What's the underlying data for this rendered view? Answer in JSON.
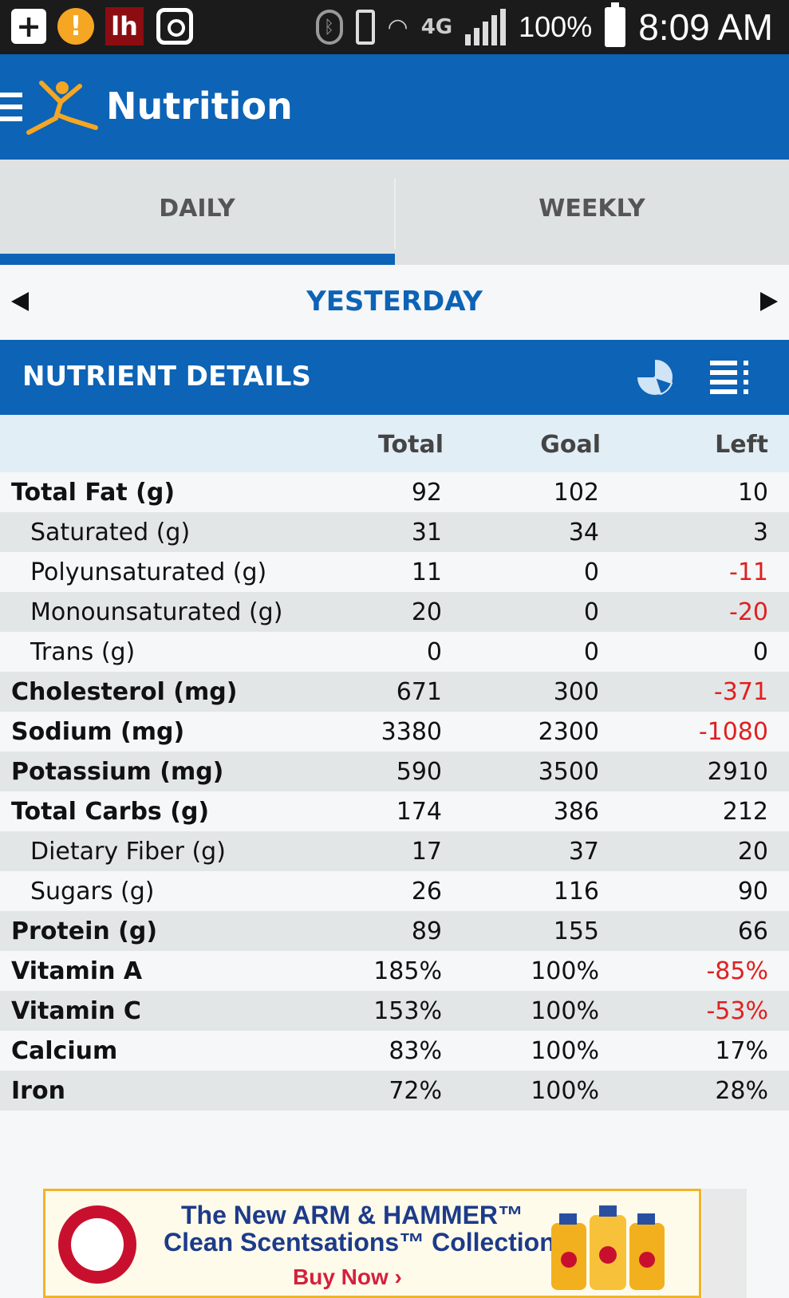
{
  "status_bar": {
    "lh_label": "lh",
    "alert_symbol": "!",
    "network": "4G",
    "battery": "100%",
    "time": "8:09 AM"
  },
  "app_bar": {
    "title": "Nutrition",
    "logo_icon": "running-figure-icon",
    "menu_icon": "hamburger-icon"
  },
  "tabs": [
    {
      "label": "DAILY",
      "selected": true
    },
    {
      "label": "WEEKLY",
      "selected": false
    }
  ],
  "date_nav": {
    "label": "YESTERDAY"
  },
  "section": {
    "title": "NUTRIENT DETAILS",
    "pie_icon": "pie-chart-icon",
    "list_icon": "list-view-icon"
  },
  "columns": {
    "total": "Total",
    "goal": "Goal",
    "left": "Left"
  },
  "nutrients": [
    {
      "name": "Total Fat (g)",
      "total": "92",
      "goal": "102",
      "left": "10"
    },
    {
      "name": "Saturated (g)",
      "total": "31",
      "goal": "34",
      "left": "3"
    },
    {
      "name": "Polyunsaturated (g)",
      "total": "11",
      "goal": "0",
      "left": "-11"
    },
    {
      "name": "Monounsaturated (g)",
      "total": "20",
      "goal": "0",
      "left": "-20"
    },
    {
      "name": "Trans (g)",
      "total": "0",
      "goal": "0",
      "left": "0"
    },
    {
      "name": "Cholesterol (mg)",
      "total": "671",
      "goal": "300",
      "left": "-371"
    },
    {
      "name": "Sodium (mg)",
      "total": "3380",
      "goal": "2300",
      "left": "-1080"
    },
    {
      "name": "Potassium (mg)",
      "total": "590",
      "goal": "3500",
      "left": "2910"
    },
    {
      "name": "Total Carbs (g)",
      "total": "174",
      "goal": "386",
      "left": "212"
    },
    {
      "name": "Dietary Fiber (g)",
      "total": "17",
      "goal": "37",
      "left": "20"
    },
    {
      "name": "Sugars (g)",
      "total": "26",
      "goal": "116",
      "left": "90"
    },
    {
      "name": "Protein (g)",
      "total": "89",
      "goal": "155",
      "left": "66"
    },
    {
      "name": "Vitamin A",
      "total": "185%",
      "goal": "100%",
      "left": "-85%"
    },
    {
      "name": "Vitamin C",
      "total": "153%",
      "goal": "100%",
      "left": "-53%"
    },
    {
      "name": "Calcium",
      "total": "83%",
      "goal": "100%",
      "left": "17%"
    },
    {
      "name": "Iron",
      "total": "72%",
      "goal": "100%",
      "left": "28%"
    }
  ],
  "ad": {
    "line1": "The New ARM & HAMMER™",
    "line2": "Clean Scentsations™ Collection",
    "cta": "Buy Now ›"
  },
  "colors": {
    "primary": "#0d63b5",
    "negative": "#e02020",
    "accent": "#f5a623"
  }
}
